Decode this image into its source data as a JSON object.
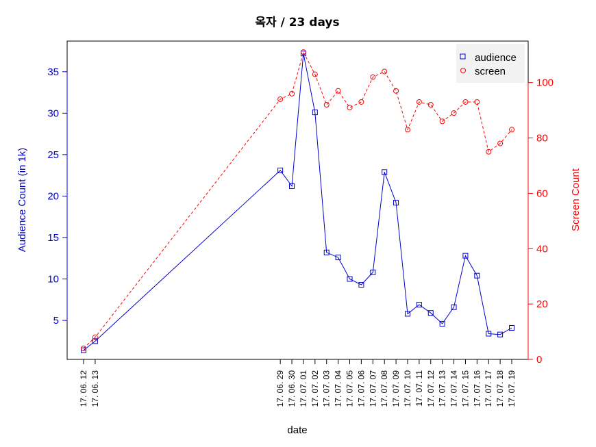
{
  "chart_data": {
    "type": "line",
    "title": "옥자 / 23 days",
    "xlabel": "date",
    "ylabel_left": "Audience Count (in 1k)",
    "ylabel_right": "Screen Count",
    "x": [
      "17. 06. 12",
      "17. 06. 13",
      "17. 06. 29",
      "17. 06. 30",
      "17. 07. 01",
      "17. 07. 02",
      "17. 07. 03",
      "17. 07. 04",
      "17. 07. 05",
      "17. 07. 06",
      "17. 07. 07",
      "17. 07. 08",
      "17. 07. 09",
      "17. 07. 10",
      "17. 07. 11",
      "17. 07. 12",
      "17. 07. 13",
      "17. 07. 14",
      "17. 07. 15",
      "17. 07. 16",
      "17. 07. 17",
      "17. 07. 18",
      "17. 07. 19"
    ],
    "day_offsets": [
      0,
      1,
      17,
      18,
      19,
      20,
      21,
      22,
      23,
      24,
      25,
      26,
      27,
      28,
      29,
      30,
      31,
      32,
      33,
      34,
      35,
      36,
      37
    ],
    "yticks_left": [
      5,
      10,
      15,
      20,
      25,
      30,
      35
    ],
    "yticks_right": [
      0,
      20,
      40,
      60,
      80,
      100
    ],
    "ylim_left": [
      0.3,
      38.7
    ],
    "ylim_right": [
      0,
      115
    ],
    "legend_position": "top-right",
    "series": [
      {
        "name": "audience",
        "axis": "left",
        "color": "#0000cc",
        "marker": "square",
        "line_style": "solid",
        "values": [
          1.4,
          2.5,
          23.1,
          21.2,
          37.2,
          30.1,
          13.2,
          12.6,
          10.0,
          9.3,
          10.8,
          22.9,
          19.2,
          5.8,
          6.9,
          5.9,
          4.6,
          6.6,
          12.8,
          10.4,
          3.4,
          3.3,
          4.1
        ]
      },
      {
        "name": "screen",
        "axis": "right",
        "color": "#ff0000",
        "marker": "circle",
        "line_style": "dashed",
        "values": [
          4,
          8,
          94,
          96,
          111,
          103,
          92,
          97,
          91,
          93,
          102,
          104,
          97,
          83,
          93,
          92,
          86,
          89,
          93,
          93,
          75,
          78,
          83
        ]
      }
    ]
  }
}
